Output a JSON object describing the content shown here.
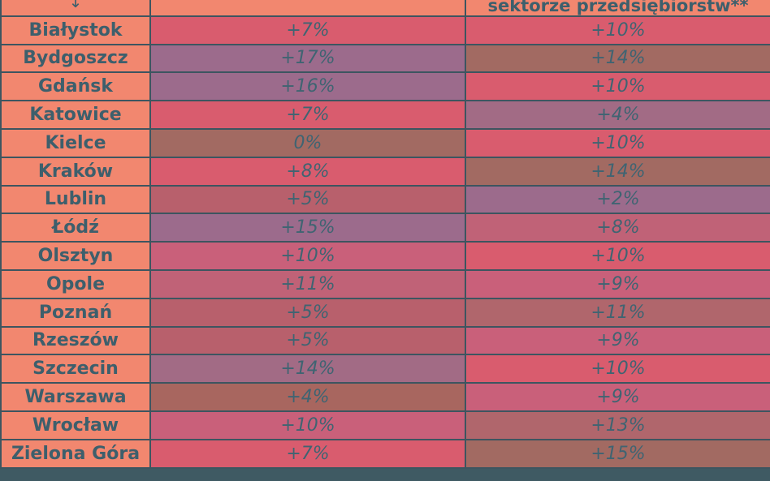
{
  "header": {
    "arrow": "↓",
    "col2_label": "",
    "col3_label": "sektorze przedsiębiorstw**"
  },
  "colors": {
    "city_cell": "#f2876f",
    "grid": "#3d5560",
    "text": "#3f6472",
    "pink": "#d95c6e",
    "mauve": "#c06277",
    "brown": "#a26a62",
    "purple": "#9c6b8c"
  },
  "chart_data": {
    "type": "table",
    "columns": [
      "",
      "",
      "sektorze przedsiębiorstw**"
    ],
    "rows": [
      {
        "city": "Białystok",
        "col1": "+7%",
        "col1_color": "#d95c6e",
        "col2": "+10%",
        "col2_color": "#d95c6e"
      },
      {
        "city": "Bydgoszcz",
        "col1": "+17%",
        "col1_color": "#9c6b8c",
        "col2": "+14%",
        "col2_color": "#a26a62"
      },
      {
        "city": "Gdańsk",
        "col1": "+16%",
        "col1_color": "#9c6b8c",
        "col2": "+10%",
        "col2_color": "#d95c6e"
      },
      {
        "city": "Katowice",
        "col1": "+7%",
        "col1_color": "#d95c6e",
        "col2": "+4%",
        "col2_color": "#a26b85"
      },
      {
        "city": "Kielce",
        "col1": "0%",
        "col1_color": "#a26a62",
        "col2": "+10%",
        "col2_color": "#d95c6e"
      },
      {
        "city": "Kraków",
        "col1": "+8%",
        "col1_color": "#d95c6e",
        "col2": "+14%",
        "col2_color": "#a26a62"
      },
      {
        "city": "Lublin",
        "col1": "+5%",
        "col1_color": "#b8606c",
        "col2": "+2%",
        "col2_color": "#9c6b8c"
      },
      {
        "city": "Łódź",
        "col1": "+15%",
        "col1_color": "#9c6b8c",
        "col2": "+8%",
        "col2_color": "#c06277"
      },
      {
        "city": "Olsztyn",
        "col1": "+10%",
        "col1_color": "#c9607a",
        "col2": "+10%",
        "col2_color": "#d95c6e"
      },
      {
        "city": "Opole",
        "col1": "+11%",
        "col1_color": "#c06277",
        "col2": "+9%",
        "col2_color": "#c9607a"
      },
      {
        "city": "Poznań",
        "col1": "+5%",
        "col1_color": "#b8606c",
        "col2": "+11%",
        "col2_color": "#b0666c"
      },
      {
        "city": "Rzeszów",
        "col1": "+5%",
        "col1_color": "#b8606c",
        "col2": "+9%",
        "col2_color": "#c9607a"
      },
      {
        "city": "Szczecin",
        "col1": "+14%",
        "col1_color": "#a26b85",
        "col2": "+10%",
        "col2_color": "#d95c6e"
      },
      {
        "city": "Warszawa",
        "col1": "+4%",
        "col1_color": "#a8665f",
        "col2": "+9%",
        "col2_color": "#c9607a"
      },
      {
        "city": "Wrocław",
        "col1": "+10%",
        "col1_color": "#c9607a",
        "col2": "+13%",
        "col2_color": "#b0666c"
      },
      {
        "city": "Zielona Góra",
        "col1": "+7%",
        "col1_color": "#d95c6e",
        "col2": "+15%",
        "col2_color": "#a26a62"
      }
    ]
  }
}
